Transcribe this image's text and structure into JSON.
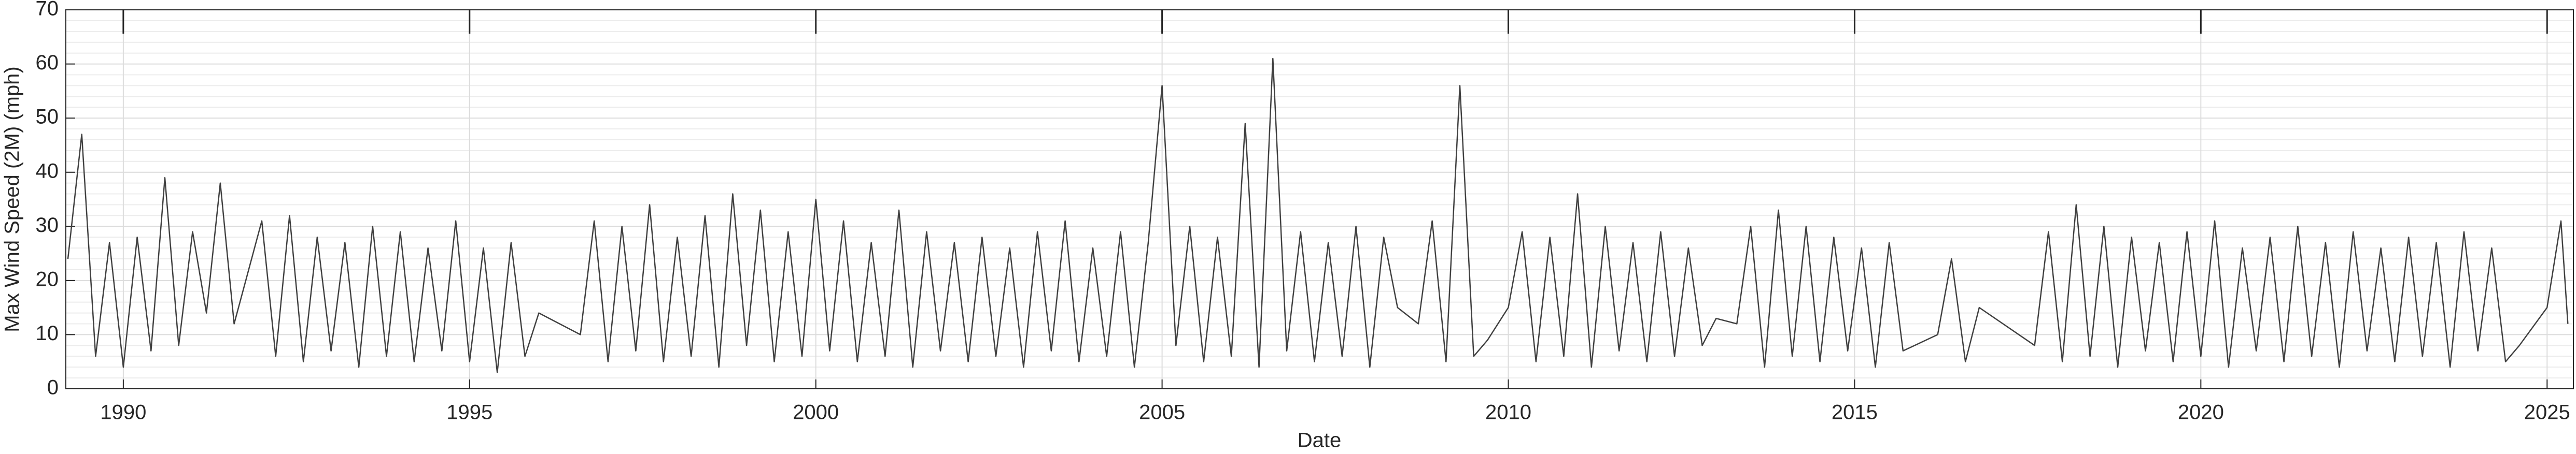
{
  "chart_data": {
    "type": "line",
    "xlabel": "Date",
    "ylabel": "Max Wind Speed (2M) (mph)",
    "xlim": [
      1989.17,
      2025.38
    ],
    "xticks": [
      1990,
      1995,
      2000,
      2005,
      2010,
      2015,
      2020,
      2025
    ],
    "ylim": [
      0,
      70
    ],
    "yticks": [
      0,
      10,
      20,
      30,
      40,
      50,
      60,
      70
    ],
    "grid": true,
    "minor_grid": true,
    "series": [
      {
        "color": "#404040",
        "x": [
          1989.2,
          1989.4,
          1989.6,
          1989.8,
          1990.0,
          1990.2,
          1990.4,
          1990.6,
          1990.8,
          1991.0,
          1991.2,
          1991.4,
          1991.6,
          1992.0,
          1992.2,
          1992.4,
          1992.6,
          1992.8,
          1993.0,
          1993.2,
          1993.4,
          1993.6,
          1993.8,
          1994.0,
          1994.2,
          1994.4,
          1994.6,
          1994.8,
          1995.0,
          1995.2,
          1995.4,
          1995.6,
          1995.8,
          1996.0,
          1996.6,
          1996.8,
          1997.0,
          1997.2,
          1997.4,
          1997.6,
          1997.8,
          1998.0,
          1998.2,
          1998.4,
          1998.6,
          1998.8,
          1999.0,
          1999.2,
          1999.4,
          1999.6,
          1999.8,
          2000.0,
          2000.2,
          2000.4,
          2000.6,
          2000.8,
          2001.0,
          2001.2,
          2001.4,
          2001.6,
          2001.8,
          2002.0,
          2002.2,
          2002.4,
          2002.6,
          2002.8,
          2003.0,
          2003.2,
          2003.4,
          2003.6,
          2003.8,
          2004.0,
          2004.2,
          2004.4,
          2004.6,
          2004.8,
          2005.0,
          2005.2,
          2005.4,
          2005.6,
          2005.8,
          2006.0,
          2006.2,
          2006.4,
          2006.6,
          2006.8,
          2007.0,
          2007.2,
          2007.4,
          2007.6,
          2007.8,
          2008.0,
          2008.2,
          2008.4,
          2008.7,
          2008.9,
          2009.1,
          2009.3,
          2009.5,
          2009.7,
          2010.0,
          2010.2,
          2010.4,
          2010.6,
          2010.8,
          2011.0,
          2011.2,
          2011.4,
          2011.6,
          2011.8,
          2012.0,
          2012.2,
          2012.4,
          2012.6,
          2012.8,
          2013.0,
          2013.3,
          2013.5,
          2013.7,
          2013.9,
          2014.1,
          2014.3,
          2014.5,
          2014.7,
          2014.9,
          2015.1,
          2015.3,
          2015.5,
          2015.7,
          2016.2,
          2016.4,
          2016.6,
          2016.8,
          2017.6,
          2017.8,
          2018.0,
          2018.2,
          2018.4,
          2018.6,
          2018.8,
          2019.0,
          2019.2,
          2019.4,
          2019.6,
          2019.8,
          2020.0,
          2020.2,
          2020.4,
          2020.6,
          2020.8,
          2021.0,
          2021.2,
          2021.4,
          2021.6,
          2021.8,
          2022.0,
          2022.2,
          2022.4,
          2022.6,
          2022.8,
          2023.0,
          2023.2,
          2023.4,
          2023.6,
          2023.8,
          2024.0,
          2024.2,
          2024.4,
          2024.6,
          2025.0,
          2025.2,
          2025.3
        ],
        "values": [
          24,
          47,
          6,
          27,
          4,
          28,
          7,
          39,
          8,
          29,
          14,
          38,
          12,
          31,
          6,
          32,
          5,
          28,
          7,
          27,
          4,
          30,
          6,
          29,
          5,
          26,
          7,
          31,
          5,
          26,
          3,
          27,
          6,
          14,
          10,
          31,
          5,
          30,
          7,
          34,
          5,
          28,
          6,
          32,
          4,
          36,
          8,
          33,
          5,
          29,
          6,
          35,
          7,
          31,
          5,
          27,
          6,
          33,
          4,
          29,
          7,
          27,
          5,
          28,
          6,
          26,
          4,
          29,
          7,
          31,
          5,
          26,
          6,
          29,
          4,
          27,
          56,
          8,
          30,
          5,
          28,
          6,
          49,
          4,
          61,
          7,
          29,
          5,
          27,
          6,
          30,
          4,
          28,
          15,
          12,
          31,
          5,
          56,
          6,
          9,
          15,
          29,
          5,
          28,
          6,
          36,
          4,
          30,
          7,
          27,
          5,
          29,
          6,
          26,
          8,
          13,
          12,
          30,
          4,
          33,
          6,
          30,
          5,
          28,
          7,
          26,
          4,
          27,
          7,
          10,
          24,
          5,
          15,
          8,
          29,
          5,
          34,
          6,
          30,
          4,
          28,
          7,
          27,
          5,
          29,
          6,
          31,
          4,
          26,
          7,
          28,
          5,
          30,
          6,
          27,
          4,
          29,
          7,
          26,
          5,
          28,
          6,
          27,
          4,
          29,
          7,
          26,
          5,
          8,
          15,
          31,
          12
        ]
      }
    ]
  }
}
